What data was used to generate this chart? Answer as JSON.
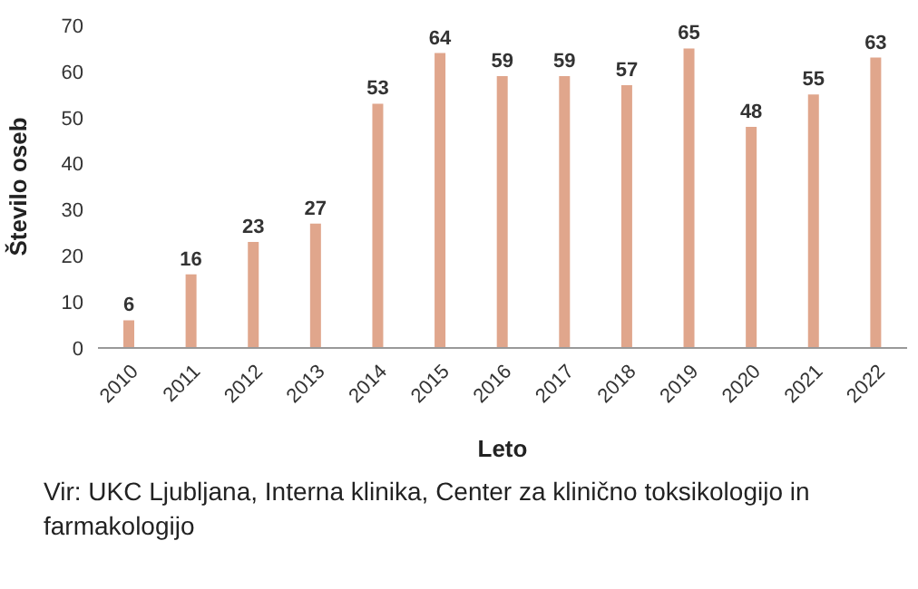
{
  "chart_data": {
    "type": "bar",
    "xlabel": "Leto",
    "ylabel": "Število oseb",
    "categories": [
      "2010",
      "2011",
      "2012",
      "2013",
      "2014",
      "2015",
      "2016",
      "2017",
      "2018",
      "2019",
      "2020",
      "2021",
      "2022"
    ],
    "values": [
      6,
      16,
      23,
      27,
      53,
      64,
      59,
      59,
      57,
      65,
      48,
      55,
      63
    ],
    "color": "#e0a68c",
    "ylim": [
      0,
      70
    ],
    "yticks": [
      0,
      10,
      20,
      30,
      40,
      50,
      60,
      70
    ],
    "grid": false,
    "data_labels": true,
    "annotations": [
      "Vir: UKC Ljubljana, Interna klinika, Center za klinično toksikologijo in farmakologijo"
    ]
  }
}
